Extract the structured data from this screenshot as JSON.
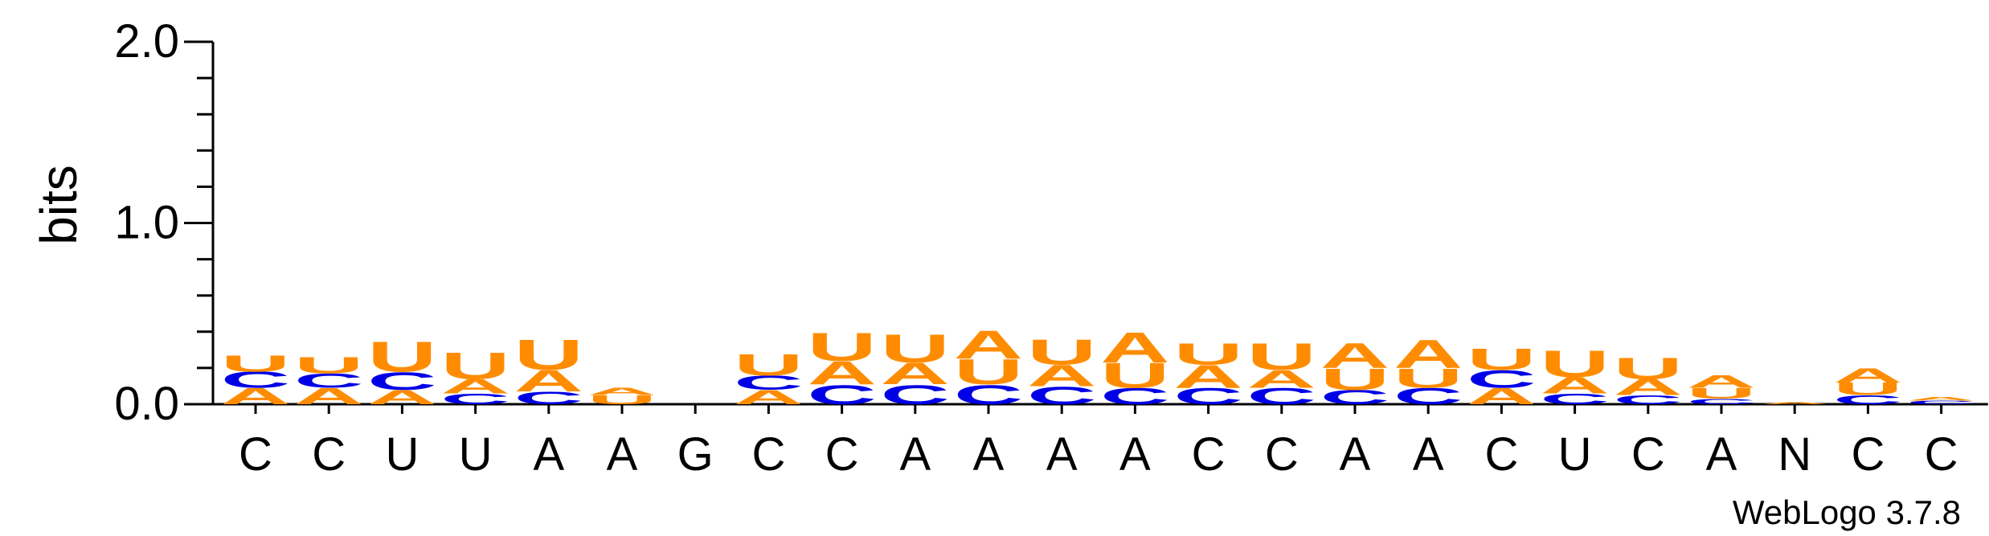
{
  "chart_data": {
    "type": "sequence-logo",
    "ylabel": "bits",
    "ylim": [
      0,
      2.0
    ],
    "yticks": [
      "0.0",
      "1.0",
      "2.0"
    ],
    "xlabels": [
      "C",
      "C",
      "U",
      "U",
      "A",
      "A",
      "G",
      "C",
      "C",
      "A",
      "A",
      "A",
      "A",
      "C",
      "C",
      "A",
      "A",
      "C",
      "U",
      "C",
      "A",
      "N",
      "C",
      "C"
    ],
    "colors": {
      "A": "#ff8c00",
      "U": "#ff8c00",
      "C": "#0000e6",
      "G": "#ff8c00"
    },
    "stacks": [
      [
        [
          "A",
          0.09
        ],
        [
          "C",
          0.09
        ],
        [
          "U",
          0.09
        ]
      ],
      [
        [
          "A",
          0.09
        ],
        [
          "C",
          0.08
        ],
        [
          "U",
          0.09
        ]
      ],
      [
        [
          "A",
          0.08
        ],
        [
          "C",
          0.1
        ],
        [
          "U",
          0.17
        ]
      ],
      [
        [
          "C",
          0.06
        ],
        [
          "A",
          0.08
        ],
        [
          "U",
          0.15
        ]
      ],
      [
        [
          "C",
          0.07
        ],
        [
          "A",
          0.12
        ],
        [
          "U",
          0.17
        ]
      ],
      [
        [
          "U",
          0.05
        ],
        [
          "A",
          0.04
        ]
      ],
      [],
      [
        [
          "A",
          0.08
        ],
        [
          "C",
          0.08
        ],
        [
          "U",
          0.12
        ]
      ],
      [
        [
          "C",
          0.11
        ],
        [
          "A",
          0.13
        ],
        [
          "U",
          0.16
        ]
      ],
      [
        [
          "C",
          0.11
        ],
        [
          "A",
          0.12
        ],
        [
          "U",
          0.16
        ]
      ],
      [
        [
          "C",
          0.11
        ],
        [
          "U",
          0.14
        ],
        [
          "A",
          0.16
        ]
      ],
      [
        [
          "C",
          0.1
        ],
        [
          "A",
          0.12
        ],
        [
          "U",
          0.14
        ]
      ],
      [
        [
          "C",
          0.09
        ],
        [
          "U",
          0.14
        ],
        [
          "A",
          0.17
        ]
      ],
      [
        [
          "C",
          0.09
        ],
        [
          "A",
          0.13
        ],
        [
          "U",
          0.12
        ]
      ],
      [
        [
          "C",
          0.09
        ],
        [
          "A",
          0.1
        ],
        [
          "U",
          0.15
        ]
      ],
      [
        [
          "C",
          0.08
        ],
        [
          "U",
          0.12
        ],
        [
          "A",
          0.14
        ]
      ],
      [
        [
          "C",
          0.09
        ],
        [
          "U",
          0.11
        ],
        [
          "A",
          0.16
        ]
      ],
      [
        [
          "A",
          0.09
        ],
        [
          "C",
          0.1
        ],
        [
          "U",
          0.12
        ]
      ],
      [
        [
          "C",
          0.06
        ],
        [
          "A",
          0.09
        ],
        [
          "U",
          0.15
        ]
      ],
      [
        [
          "C",
          0.05
        ],
        [
          "A",
          0.09
        ],
        [
          "U",
          0.12
        ]
      ],
      [
        [
          "C",
          0.03
        ],
        [
          "U",
          0.06
        ],
        [
          "A",
          0.07
        ]
      ],
      [
        [
          "A",
          0.01
        ]
      ],
      [
        [
          "C",
          0.05
        ],
        [
          "U",
          0.07
        ],
        [
          "A",
          0.08
        ]
      ],
      [
        [
          "C",
          0.02
        ],
        [
          "A",
          0.02
        ]
      ]
    ],
    "watermark": "WebLogo 3.7.8"
  }
}
